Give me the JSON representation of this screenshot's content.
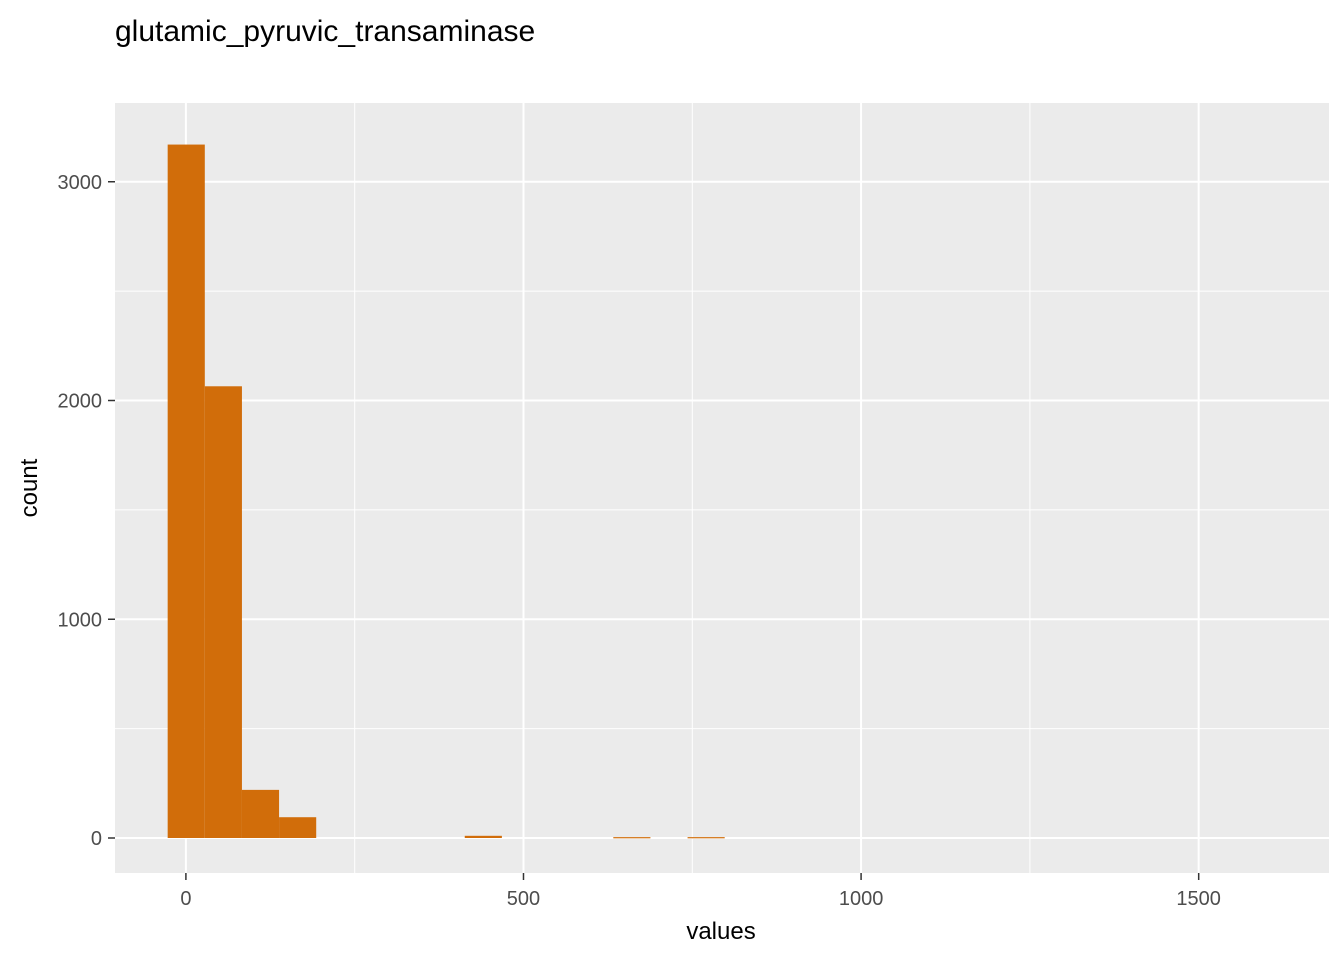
{
  "chart_data": {
    "type": "bar",
    "title": "glutamic_pyruvic_transaminase",
    "xlabel": "values",
    "ylabel": "count",
    "xlim": [
      -105,
      1693
    ],
    "ylim": [
      -160,
      3360
    ],
    "x_ticks": [
      0,
      500,
      1000,
      1500
    ],
    "x_tick_labels": [
      "0",
      "500",
      "1000",
      "1500"
    ],
    "x_minor_ticks": [
      250,
      750,
      1250
    ],
    "y_ticks": [
      0,
      1000,
      2000,
      3000
    ],
    "y_tick_labels": [
      "0",
      "1000",
      "2000",
      "3000"
    ],
    "y_minor_ticks": [
      500,
      1500,
      2500
    ],
    "grid": true,
    "bar_color": "#D16D0A",
    "panel_background": "#EBEBEB",
    "grid_color": "#FFFFFF",
    "bins": [
      {
        "x0": -27,
        "x1": 28,
        "count": 3170
      },
      {
        "x0": 28,
        "x1": 83,
        "count": 2065
      },
      {
        "x0": 83,
        "x1": 138,
        "count": 220
      },
      {
        "x0": 138,
        "x1": 193,
        "count": 95
      },
      {
        "x0": 193,
        "x1": 248,
        "count": 0
      },
      {
        "x0": 248,
        "x1": 303,
        "count": 0
      },
      {
        "x0": 303,
        "x1": 358,
        "count": 0
      },
      {
        "x0": 358,
        "x1": 413,
        "count": 0
      },
      {
        "x0": 413,
        "x1": 468,
        "count": 10
      },
      {
        "x0": 468,
        "x1": 523,
        "count": 0
      },
      {
        "x0": 523,
        "x1": 578,
        "count": 0
      },
      {
        "x0": 578,
        "x1": 633,
        "count": 0
      },
      {
        "x0": 633,
        "x1": 688,
        "count": 4
      },
      {
        "x0": 688,
        "x1": 743,
        "count": 0
      },
      {
        "x0": 743,
        "x1": 798,
        "count": 4
      }
    ]
  }
}
